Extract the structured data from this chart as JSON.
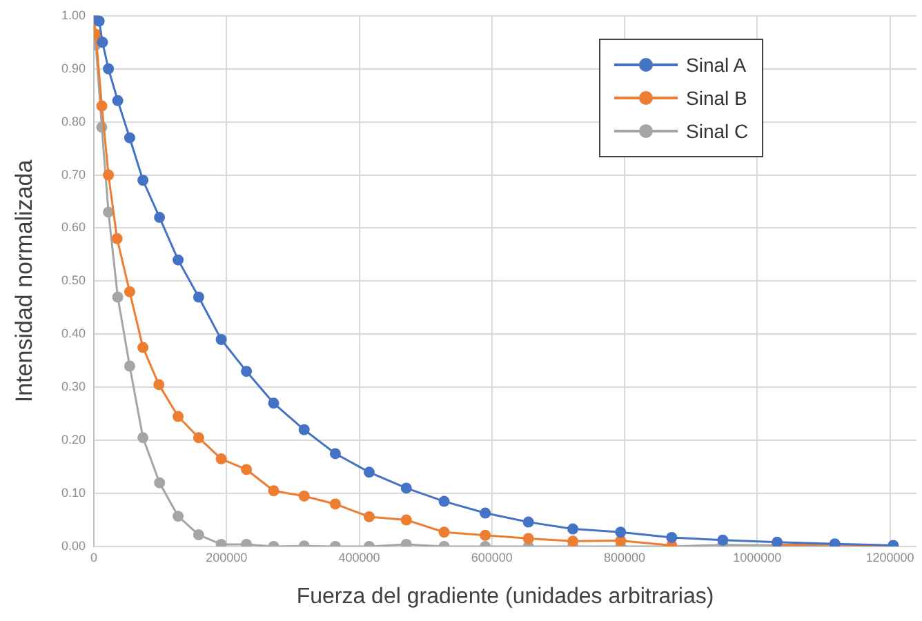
{
  "chart_data": {
    "type": "line",
    "xlabel": "Fuerza del gradiente (unidades arbitrarias)",
    "ylabel": "Intensidad normalizada",
    "xlim": [
      0,
      1240000
    ],
    "xticks": [
      0,
      200000,
      400000,
      600000,
      800000,
      1000000,
      1200000
    ],
    "ylim": [
      0,
      1
    ],
    "yticks": [
      {
        "value": 0,
        "label": "0.00"
      },
      {
        "value": 0.1,
        "label": "0.10"
      },
      {
        "value": 0.2,
        "label": "0.20"
      },
      {
        "value": 0.3,
        "label": "0.30"
      },
      {
        "value": 0.4,
        "label": "0.40"
      },
      {
        "value": 0.5,
        "label": "0.50"
      },
      {
        "value": 0.6,
        "label": "0.60"
      },
      {
        "value": 0.7,
        "label": "0.70"
      },
      {
        "value": 0.8,
        "label": "0.80"
      },
      {
        "value": 0.9,
        "label": "0.90"
      },
      {
        "value": 1,
        "label": "1.00"
      }
    ],
    "grid": true,
    "legend": "top right",
    "marker": "circle",
    "line_style": "solid",
    "series": [
      {
        "name": "Sinal A",
        "color": "#4472c4",
        "x": [
          0,
          8000,
          13000,
          22000,
          36000,
          54000,
          74000,
          99000,
          127000,
          158000,
          192000,
          230000,
          271000,
          317000,
          364000,
          415000,
          471000,
          528000,
          590000,
          655000,
          722000,
          794000,
          871000,
          948000,
          1030000,
          1117000,
          1205000
        ],
        "values": [
          1.0,
          0.99,
          0.95,
          0.9,
          0.84,
          0.77,
          0.69,
          0.62,
          0.54,
          0.47,
          0.39,
          0.33,
          0.27,
          0.22,
          0.175,
          0.14,
          0.11,
          0.085,
          0.063,
          0.046,
          0.033,
          0.027,
          0.017,
          0.012,
          0.008,
          0.005,
          0.002
        ]
      },
      {
        "name": "Sinal B",
        "color": "#ed7d31",
        "x": [
          0,
          3000,
          12000,
          22000,
          35000,
          54000,
          74000,
          98000,
          127000,
          158000,
          192000,
          230000,
          271000,
          317000,
          364000,
          415000,
          471000,
          528000,
          590000,
          655000,
          722000,
          794000,
          871000,
          948000,
          1030000,
          1117000,
          1205000
        ],
        "values": [
          1.0,
          0.965,
          0.83,
          0.7,
          0.58,
          0.48,
          0.375,
          0.305,
          0.245,
          0.205,
          0.165,
          0.145,
          0.105,
          0.095,
          0.08,
          0.056,
          0.05,
          0.027,
          0.021,
          0.015,
          0.01,
          0.011,
          0.002,
          null,
          0.003,
          0.004,
          0.0
        ]
      },
      {
        "name": "Sinal C",
        "color": "#a5a5a5",
        "x": [
          0,
          3000,
          12000,
          22000,
          36000,
          54000,
          74000,
          99000,
          127000,
          158000,
          192000,
          230000,
          271000,
          317000,
          364000,
          415000,
          471000,
          528000,
          590000,
          655000,
          722000,
          794000,
          871000,
          948000,
          1030000,
          1117000,
          1205000
        ],
        "values": [
          1.0,
          0.945,
          0.79,
          0.63,
          0.47,
          0.34,
          0.205,
          0.12,
          0.057,
          0.022,
          0.004,
          0.004,
          0.0,
          0.001,
          0.0,
          0.0,
          0.004,
          0.0,
          0.0,
          0.0,
          0.0,
          0.0,
          0.0,
          0.003,
          0.002,
          0.0,
          0.0
        ]
      }
    ]
  }
}
